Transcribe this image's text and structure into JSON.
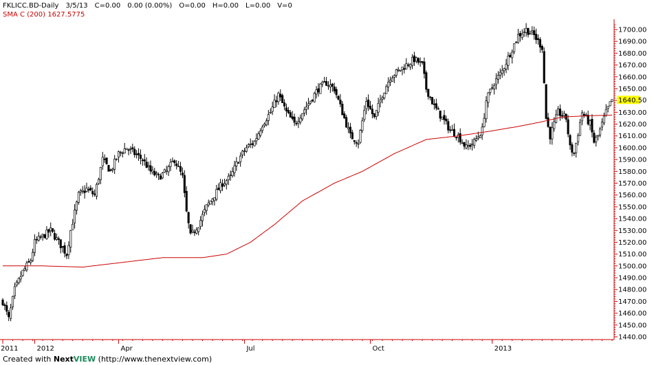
{
  "header": {
    "symbol": "FKLICC.BD",
    "period": "-Daily",
    "date": "3/5/13",
    "close": "C=0.00",
    "change": "0.00 (0.00%)",
    "open": "O=0.00",
    "high": "H=0.00",
    "low": "L=0.00",
    "volume": "V=0",
    "sma_label": "SMA C (200) 1627.5775"
  },
  "footer": {
    "prefix": "Created with ",
    "brand_next": "Next",
    "brand_view": "VIEW",
    "url": " (http://www.thenextview.com)"
  },
  "chart_data": {
    "type": "candlestick",
    "ylim": [
      1440,
      1710
    ],
    "y_ticks": [
      1440,
      1450,
      1460,
      1470,
      1480,
      1490,
      1500,
      1510,
      1520,
      1530,
      1540,
      1550,
      1560,
      1570,
      1580,
      1590,
      1600,
      1610,
      1620,
      1630,
      1640,
      1650,
      1660,
      1670,
      1680,
      1690,
      1700
    ],
    "y_tick_labels": [
      "1440.00",
      "1450.00",
      "1460.00",
      "1470.00",
      "1480.00",
      "1490.00",
      "1500.00",
      "1510.00",
      "1520.00",
      "1530.00",
      "1540.00",
      "1550.00",
      "1560.00",
      "1570.00",
      "1580.00",
      "1590.00",
      "1600.00",
      "1610.00",
      "1620.00",
      "1630.00",
      "1640.00",
      "1650.00",
      "1660.00",
      "1670.00",
      "1680.00",
      "1690.00",
      "1700.00"
    ],
    "x_tick_labels": [
      "2011",
      "2012",
      "Apr",
      "Jul",
      "Oct",
      "2013"
    ],
    "x_tick_positions": [
      0,
      16,
      58,
      121,
      184,
      245
    ],
    "last_price_label": "1640.50",
    "last_price": 1640.5,
    "bar_count": 306,
    "colors": {
      "up": "#ffffff",
      "down": "#000000",
      "sma": "#cc0000",
      "axis": "#cc0000",
      "highlight": "#ffff00"
    },
    "close_anchors": [
      [
        0,
        1470
      ],
      [
        3,
        1455
      ],
      [
        6,
        1480
      ],
      [
        10,
        1495
      ],
      [
        14,
        1505
      ],
      [
        16,
        1520
      ],
      [
        20,
        1525
      ],
      [
        24,
        1530
      ],
      [
        28,
        1520
      ],
      [
        32,
        1510
      ],
      [
        34,
        1530
      ],
      [
        38,
        1560
      ],
      [
        42,
        1565
      ],
      [
        46,
        1560
      ],
      [
        50,
        1590
      ],
      [
        54,
        1580
      ],
      [
        58,
        1595
      ],
      [
        62,
        1600
      ],
      [
        66,
        1595
      ],
      [
        70,
        1590
      ],
      [
        74,
        1580
      ],
      [
        78,
        1575
      ],
      [
        82,
        1580
      ],
      [
        86,
        1590
      ],
      [
        90,
        1575
      ],
      [
        92,
        1545
      ],
      [
        94,
        1525
      ],
      [
        98,
        1535
      ],
      [
        102,
        1550
      ],
      [
        106,
        1560
      ],
      [
        110,
        1570
      ],
      [
        114,
        1575
      ],
      [
        118,
        1590
      ],
      [
        122,
        1600
      ],
      [
        126,
        1605
      ],
      [
        130,
        1620
      ],
      [
        134,
        1630
      ],
      [
        138,
        1645
      ],
      [
        142,
        1630
      ],
      [
        146,
        1620
      ],
      [
        150,
        1630
      ],
      [
        154,
        1640
      ],
      [
        158,
        1650
      ],
      [
        162,
        1655
      ],
      [
        166,
        1650
      ],
      [
        170,
        1630
      ],
      [
        174,
        1610
      ],
      [
        178,
        1605
      ],
      [
        182,
        1640
      ],
      [
        186,
        1625
      ],
      [
        190,
        1645
      ],
      [
        194,
        1660
      ],
      [
        198,
        1665
      ],
      [
        202,
        1670
      ],
      [
        206,
        1675
      ],
      [
        210,
        1670
      ],
      [
        212,
        1650
      ],
      [
        216,
        1635
      ],
      [
        220,
        1625
      ],
      [
        224,
        1615
      ],
      [
        228,
        1610
      ],
      [
        232,
        1600
      ],
      [
        236,
        1605
      ],
      [
        240,
        1615
      ],
      [
        242,
        1640
      ],
      [
        246,
        1655
      ],
      [
        250,
        1665
      ],
      [
        254,
        1680
      ],
      [
        258,
        1695
      ],
      [
        262,
        1700
      ],
      [
        266,
        1695
      ],
      [
        268,
        1690
      ],
      [
        270,
        1685
      ],
      [
        272,
        1625
      ],
      [
        274,
        1610
      ],
      [
        278,
        1630
      ],
      [
        282,
        1625
      ],
      [
        284,
        1600
      ],
      [
        286,
        1595
      ],
      [
        290,
        1630
      ],
      [
        294,
        1620
      ],
      [
        296,
        1605
      ],
      [
        298,
        1610
      ],
      [
        302,
        1630
      ],
      [
        305,
        1640.5
      ]
    ],
    "sma_anchors": [
      [
        0,
        1500
      ],
      [
        20,
        1500
      ],
      [
        40,
        1499
      ],
      [
        60,
        1503
      ],
      [
        80,
        1507
      ],
      [
        100,
        1507
      ],
      [
        112,
        1510
      ],
      [
        124,
        1520
      ],
      [
        136,
        1535
      ],
      [
        150,
        1555
      ],
      [
        166,
        1570
      ],
      [
        180,
        1580
      ],
      [
        196,
        1595
      ],
      [
        212,
        1607
      ],
      [
        228,
        1610
      ],
      [
        244,
        1614
      ],
      [
        258,
        1618
      ],
      [
        270,
        1622
      ],
      [
        280,
        1626
      ],
      [
        292,
        1627
      ],
      [
        305,
        1627.6
      ]
    ]
  }
}
